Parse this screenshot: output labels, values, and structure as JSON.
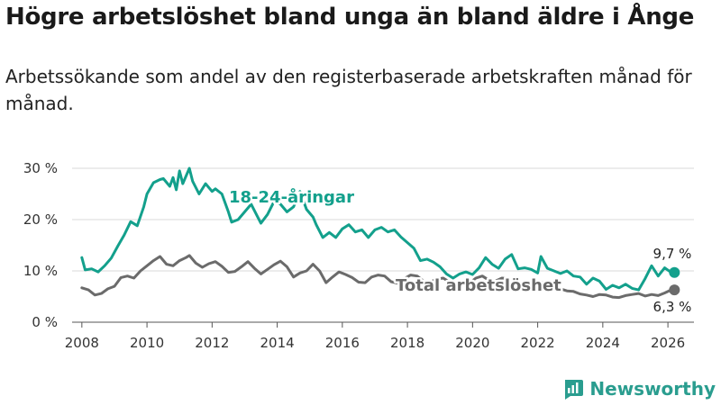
{
  "title": "Högre arbetslöshet bland unga än bland äldre i Ånge",
  "subtitle": "Arbetssökande som andel av den registerbaserade arbetskraften månad för månad.",
  "brand": {
    "name": "Newsworthy",
    "color": "#2a9d8f"
  },
  "chart_data": {
    "type": "line",
    "title": "Högre arbetslöshet bland unga än bland äldre i Ånge",
    "xlabel": "",
    "ylabel": "",
    "xlim": [
      2007.7,
      2026.8
    ],
    "ylim": [
      0,
      30
    ],
    "x_ticks": [
      2008,
      2010,
      2012,
      2014,
      2016,
      2018,
      2020,
      2022,
      2024,
      2026
    ],
    "x_tick_labels": [
      "2008",
      "2010",
      "2012",
      "2014",
      "2016",
      "2018",
      "2020",
      "2022",
      "2024",
      "2026"
    ],
    "y_ticks": [
      0,
      10,
      20,
      30
    ],
    "y_tick_labels": [
      "0 %",
      "10 %",
      "20 %",
      "30 %"
    ],
    "grid": true,
    "series": [
      {
        "name": "18-24-åringar",
        "color": "#13a08c",
        "end_label": "9,7 %",
        "points": [
          [
            2008.0,
            12.6
          ],
          [
            2008.1,
            10.2
          ],
          [
            2008.3,
            10.4
          ],
          [
            2008.5,
            9.8
          ],
          [
            2008.7,
            11.0
          ],
          [
            2008.9,
            12.5
          ],
          [
            2009.1,
            14.8
          ],
          [
            2009.3,
            17.0
          ],
          [
            2009.5,
            19.6
          ],
          [
            2009.7,
            18.8
          ],
          [
            2009.9,
            22.5
          ],
          [
            2010.0,
            25.0
          ],
          [
            2010.2,
            27.2
          ],
          [
            2010.4,
            27.8
          ],
          [
            2010.5,
            28.0
          ],
          [
            2010.7,
            26.5
          ],
          [
            2010.8,
            28.2
          ],
          [
            2010.9,
            25.8
          ],
          [
            2011.0,
            29.5
          ],
          [
            2011.1,
            27.0
          ],
          [
            2011.3,
            30.0
          ],
          [
            2011.4,
            27.5
          ],
          [
            2011.6,
            25.0
          ],
          [
            2011.8,
            27.0
          ],
          [
            2012.0,
            25.5
          ],
          [
            2012.1,
            26.0
          ],
          [
            2012.3,
            25.0
          ],
          [
            2012.5,
            21.5
          ],
          [
            2012.6,
            19.5
          ],
          [
            2012.8,
            20.0
          ],
          [
            2013.0,
            21.5
          ],
          [
            2013.2,
            23.0
          ],
          [
            2013.4,
            20.5
          ],
          [
            2013.5,
            19.3
          ],
          [
            2013.7,
            21.0
          ],
          [
            2013.9,
            23.5
          ],
          [
            2014.1,
            23.0
          ],
          [
            2014.3,
            21.5
          ],
          [
            2014.5,
            22.5
          ],
          [
            2014.7,
            25.5
          ],
          [
            2014.9,
            22.0
          ],
          [
            2015.1,
            20.5
          ],
          [
            2015.2,
            19.0
          ],
          [
            2015.4,
            16.5
          ],
          [
            2015.6,
            17.5
          ],
          [
            2015.8,
            16.5
          ],
          [
            2016.0,
            18.2
          ],
          [
            2016.2,
            19.0
          ],
          [
            2016.4,
            17.6
          ],
          [
            2016.6,
            18.0
          ],
          [
            2016.8,
            16.5
          ],
          [
            2017.0,
            18.0
          ],
          [
            2017.2,
            18.5
          ],
          [
            2017.4,
            17.6
          ],
          [
            2017.6,
            18.0
          ],
          [
            2017.8,
            16.6
          ],
          [
            2018.0,
            15.5
          ],
          [
            2018.2,
            14.4
          ],
          [
            2018.4,
            12.0
          ],
          [
            2018.6,
            12.3
          ],
          [
            2018.8,
            11.7
          ],
          [
            2019.0,
            10.8
          ],
          [
            2019.2,
            9.4
          ],
          [
            2019.4,
            8.6
          ],
          [
            2019.6,
            9.4
          ],
          [
            2019.8,
            9.8
          ],
          [
            2020.0,
            9.3
          ],
          [
            2020.2,
            10.6
          ],
          [
            2020.4,
            12.6
          ],
          [
            2020.6,
            11.3
          ],
          [
            2020.8,
            10.5
          ],
          [
            2021.0,
            12.3
          ],
          [
            2021.2,
            13.2
          ],
          [
            2021.4,
            10.4
          ],
          [
            2021.6,
            10.6
          ],
          [
            2021.8,
            10.3
          ],
          [
            2022.0,
            9.6
          ],
          [
            2022.1,
            12.8
          ],
          [
            2022.3,
            10.5
          ],
          [
            2022.5,
            10.0
          ],
          [
            2022.7,
            9.5
          ],
          [
            2022.9,
            10.0
          ],
          [
            2023.1,
            9.0
          ],
          [
            2023.3,
            8.8
          ],
          [
            2023.5,
            7.4
          ],
          [
            2023.7,
            8.6
          ],
          [
            2023.9,
            8.0
          ],
          [
            2024.1,
            6.4
          ],
          [
            2024.3,
            7.2
          ],
          [
            2024.5,
            6.7
          ],
          [
            2024.7,
            7.4
          ],
          [
            2024.9,
            6.6
          ],
          [
            2025.1,
            6.3
          ],
          [
            2025.3,
            8.5
          ],
          [
            2025.5,
            11.0
          ],
          [
            2025.7,
            9.0
          ],
          [
            2025.9,
            10.6
          ],
          [
            2026.1,
            9.7
          ],
          [
            2026.2,
            9.7
          ]
        ]
      },
      {
        "name": "Total arbetslöshet",
        "color": "#6b6b6b",
        "end_label": "6,3 %",
        "points": [
          [
            2008.0,
            6.7
          ],
          [
            2008.2,
            6.3
          ],
          [
            2008.4,
            5.3
          ],
          [
            2008.6,
            5.6
          ],
          [
            2008.8,
            6.5
          ],
          [
            2009.0,
            7.0
          ],
          [
            2009.2,
            8.7
          ],
          [
            2009.4,
            9.0
          ],
          [
            2009.6,
            8.6
          ],
          [
            2009.8,
            10.0
          ],
          [
            2010.0,
            11.0
          ],
          [
            2010.2,
            12.0
          ],
          [
            2010.4,
            12.8
          ],
          [
            2010.6,
            11.3
          ],
          [
            2010.8,
            11.0
          ],
          [
            2011.0,
            12.0
          ],
          [
            2011.2,
            12.6
          ],
          [
            2011.3,
            13.0
          ],
          [
            2011.5,
            11.5
          ],
          [
            2011.7,
            10.7
          ],
          [
            2011.9,
            11.4
          ],
          [
            2012.1,
            11.8
          ],
          [
            2012.3,
            10.9
          ],
          [
            2012.5,
            9.7
          ],
          [
            2012.7,
            9.9
          ],
          [
            2012.9,
            10.8
          ],
          [
            2013.1,
            11.8
          ],
          [
            2013.3,
            10.5
          ],
          [
            2013.5,
            9.4
          ],
          [
            2013.7,
            10.3
          ],
          [
            2013.9,
            11.2
          ],
          [
            2014.1,
            11.9
          ],
          [
            2014.3,
            10.8
          ],
          [
            2014.5,
            8.8
          ],
          [
            2014.7,
            9.6
          ],
          [
            2014.9,
            10.0
          ],
          [
            2015.1,
            11.3
          ],
          [
            2015.3,
            10.0
          ],
          [
            2015.5,
            7.7
          ],
          [
            2015.7,
            8.8
          ],
          [
            2015.9,
            9.8
          ],
          [
            2016.1,
            9.3
          ],
          [
            2016.3,
            8.7
          ],
          [
            2016.5,
            7.8
          ],
          [
            2016.7,
            7.7
          ],
          [
            2016.9,
            8.8
          ],
          [
            2017.1,
            9.2
          ],
          [
            2017.3,
            9.0
          ],
          [
            2017.5,
            7.9
          ],
          [
            2017.7,
            7.6
          ],
          [
            2017.9,
            8.5
          ],
          [
            2018.1,
            9.2
          ],
          [
            2018.3,
            9.0
          ],
          [
            2018.5,
            8.0
          ],
          [
            2018.7,
            7.8
          ],
          [
            2018.9,
            8.4
          ],
          [
            2019.1,
            8.6
          ],
          [
            2019.3,
            7.8
          ],
          [
            2019.5,
            7.0
          ],
          [
            2019.7,
            7.4
          ],
          [
            2019.9,
            7.6
          ],
          [
            2020.1,
            8.6
          ],
          [
            2020.3,
            9.0
          ],
          [
            2020.5,
            8.2
          ],
          [
            2020.7,
            8.0
          ],
          [
            2020.9,
            8.6
          ],
          [
            2021.1,
            8.5
          ],
          [
            2021.3,
            7.6
          ],
          [
            2021.5,
            7.2
          ],
          [
            2021.7,
            7.2
          ],
          [
            2021.9,
            7.5
          ],
          [
            2022.1,
            7.8
          ],
          [
            2022.3,
            7.3
          ],
          [
            2022.5,
            6.6
          ],
          [
            2022.7,
            6.5
          ],
          [
            2022.9,
            6.1
          ],
          [
            2023.1,
            6.0
          ],
          [
            2023.3,
            5.5
          ],
          [
            2023.5,
            5.3
          ],
          [
            2023.7,
            5.0
          ],
          [
            2023.9,
            5.4
          ],
          [
            2024.1,
            5.3
          ],
          [
            2024.3,
            4.9
          ],
          [
            2024.5,
            4.8
          ],
          [
            2024.7,
            5.2
          ],
          [
            2024.9,
            5.4
          ],
          [
            2025.1,
            5.6
          ],
          [
            2025.3,
            5.1
          ],
          [
            2025.5,
            5.4
          ],
          [
            2025.7,
            5.2
          ],
          [
            2025.9,
            5.7
          ],
          [
            2026.1,
            6.3
          ],
          [
            2026.2,
            6.3
          ]
        ]
      }
    ]
  }
}
